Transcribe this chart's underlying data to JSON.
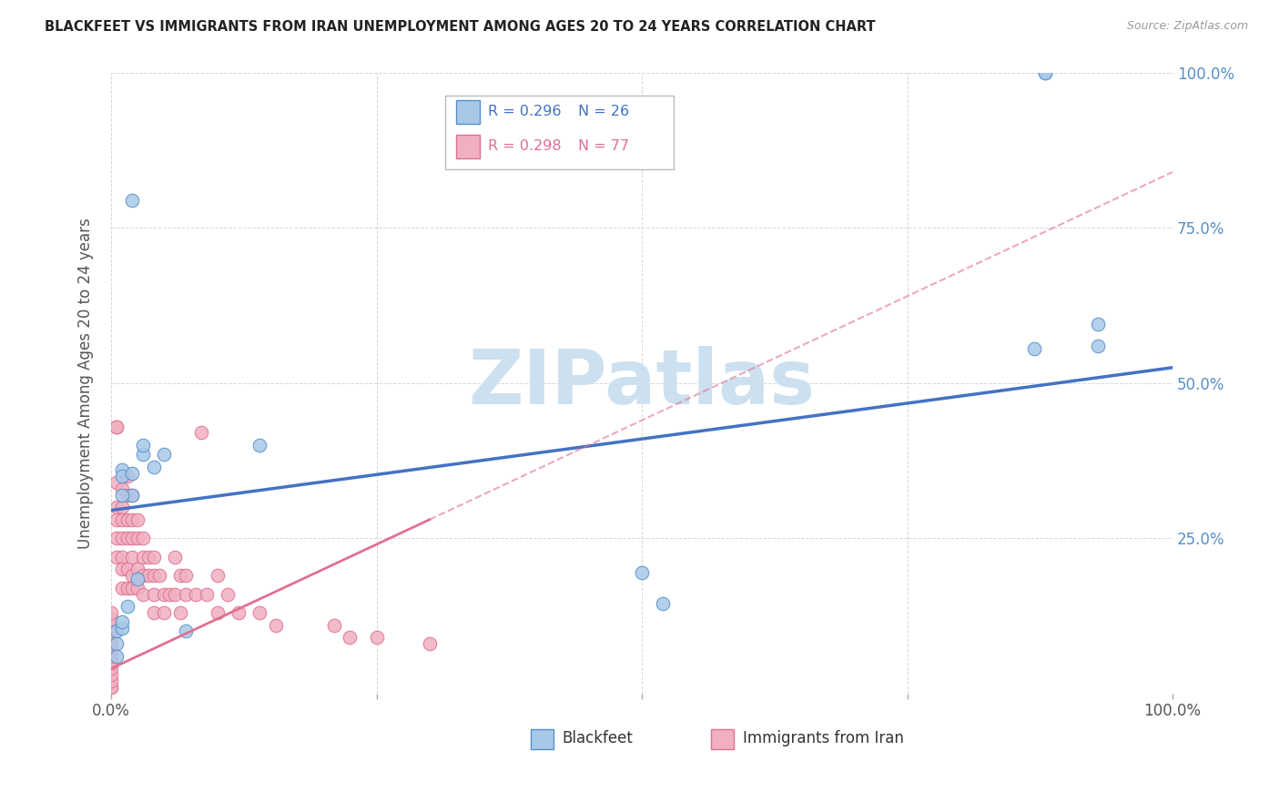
{
  "title": "BLACKFEET VS IMMIGRANTS FROM IRAN UNEMPLOYMENT AMONG AGES 20 TO 24 YEARS CORRELATION CHART",
  "source": "Source: ZipAtlas.com",
  "ylabel": "Unemployment Among Ages 20 to 24 years",
  "legend_blue_r": "R = 0.296",
  "legend_blue_n": "N = 26",
  "legend_pink_r": "R = 0.298",
  "legend_pink_n": "N = 77",
  "legend_label_blue": "Blackfeet",
  "legend_label_pink": "Immigrants from Iran",
  "blue_scatter_color": "#a8c8e8",
  "blue_edge_color": "#5590c8",
  "pink_scatter_color": "#f0b0c0",
  "pink_edge_color": "#e07090",
  "blue_line_color": "#4472c4",
  "pink_line_color": "#e07090",
  "watermark_color": "#cce0f0",
  "tick_label_color": "#5590c8",
  "xlim": [
    0.0,
    1.0
  ],
  "ylim": [
    0.0,
    1.0
  ],
  "blue_line_x0": 0.0,
  "blue_line_y0": 0.295,
  "blue_line_x1": 1.0,
  "blue_line_y1": 0.525,
  "pink_line_x0": 0.0,
  "pink_line_y0": 0.04,
  "pink_line_x1": 0.3,
  "pink_line_y1": 0.28,
  "blue_x": [
    0.02,
    0.02,
    0.005,
    0.005,
    0.01,
    0.01,
    0.01,
    0.02,
    0.03,
    0.03,
    0.04,
    0.05,
    0.005,
    0.01,
    0.01,
    0.015,
    0.025,
    0.5,
    0.88,
    0.88,
    0.93,
    0.93,
    0.87,
    0.52,
    0.07,
    0.14
  ],
  "blue_y": [
    0.795,
    0.32,
    0.1,
    0.08,
    0.36,
    0.35,
    0.32,
    0.355,
    0.385,
    0.4,
    0.365,
    0.385,
    0.06,
    0.105,
    0.115,
    0.14,
    0.185,
    0.195,
    1.0,
    1.0,
    0.595,
    0.56,
    0.555,
    0.145,
    0.1,
    0.4
  ],
  "pink_x": [
    0.0,
    0.0,
    0.0,
    0.0,
    0.0,
    0.0,
    0.0,
    0.0,
    0.0,
    0.0,
    0.0,
    0.0,
    0.0,
    0.0,
    0.005,
    0.005,
    0.005,
    0.005,
    0.005,
    0.005,
    0.005,
    0.01,
    0.01,
    0.01,
    0.01,
    0.01,
    0.01,
    0.01,
    0.015,
    0.015,
    0.015,
    0.015,
    0.015,
    0.015,
    0.02,
    0.02,
    0.02,
    0.02,
    0.02,
    0.02,
    0.025,
    0.025,
    0.025,
    0.025,
    0.03,
    0.03,
    0.03,
    0.03,
    0.035,
    0.035,
    0.04,
    0.04,
    0.04,
    0.04,
    0.045,
    0.05,
    0.05,
    0.055,
    0.06,
    0.06,
    0.065,
    0.065,
    0.07,
    0.07,
    0.08,
    0.085,
    0.09,
    0.1,
    0.1,
    0.11,
    0.12,
    0.14,
    0.155,
    0.21,
    0.225,
    0.25,
    0.3
  ],
  "pink_y": [
    0.01,
    0.01,
    0.02,
    0.03,
    0.04,
    0.05,
    0.06,
    0.07,
    0.08,
    0.09,
    0.1,
    0.11,
    0.12,
    0.13,
    0.43,
    0.43,
    0.34,
    0.3,
    0.28,
    0.25,
    0.22,
    0.33,
    0.3,
    0.28,
    0.25,
    0.22,
    0.2,
    0.17,
    0.35,
    0.32,
    0.28,
    0.25,
    0.2,
    0.17,
    0.32,
    0.28,
    0.25,
    0.22,
    0.19,
    0.17,
    0.28,
    0.25,
    0.2,
    0.17,
    0.25,
    0.22,
    0.19,
    0.16,
    0.22,
    0.19,
    0.22,
    0.19,
    0.16,
    0.13,
    0.19,
    0.16,
    0.13,
    0.16,
    0.22,
    0.16,
    0.19,
    0.13,
    0.19,
    0.16,
    0.16,
    0.42,
    0.16,
    0.19,
    0.13,
    0.16,
    0.13,
    0.13,
    0.11,
    0.11,
    0.09,
    0.09,
    0.08
  ]
}
